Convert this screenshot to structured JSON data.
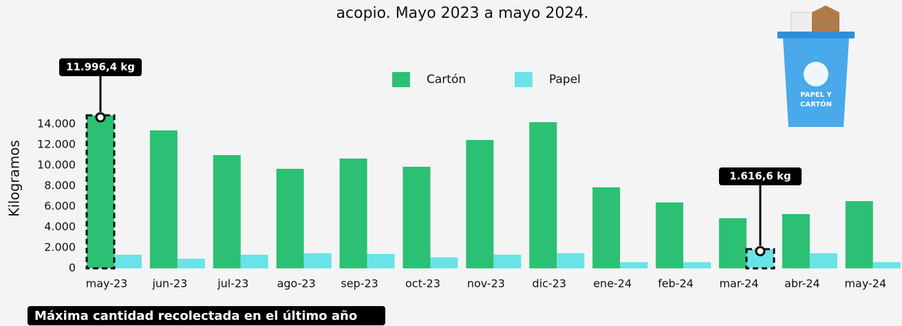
{
  "chart_data": {
    "type": "bar",
    "title": "acopio. Mayo 2023 a mayo 2024.",
    "y_label": "Kilogramos",
    "categories": [
      "may-23",
      "jun-23",
      "jul-23",
      "ago-23",
      "sep-23",
      "oct-23",
      "nov-23",
      "dic-23",
      "ene-24",
      "feb-24",
      "mar-24",
      "abr-24",
      "may-24"
    ],
    "series": [
      {
        "name": "Cartón",
        "color": "#2bc073",
        "values": [
          14870,
          13400,
          11000,
          9670,
          10670,
          9870,
          12470,
          14200,
          7870,
          6400,
          4870,
          5270,
          6530
        ]
      },
      {
        "name": "Papel",
        "color": "#6ae3e8",
        "values": [
          1330,
          930,
          1330,
          1470,
          1400,
          1070,
          1330,
          1470,
          600,
          600,
          1870,
          1470,
          600
        ]
      }
    ],
    "ylim": [
      0,
      14800
    ],
    "yticks": [
      0,
      {
        "value": 2000,
        "label": "2.000"
      },
      {
        "value": 4000,
        "label": "4.000"
      },
      {
        "value": 6000,
        "label": "6.000"
      },
      {
        "value": 8000,
        "label": "8.000"
      },
      {
        "value": 10000,
        "label": "10.000"
      },
      {
        "value": 12000,
        "label": "12.000"
      },
      {
        "value": 14000,
        "label": "14.000"
      }
    ],
    "legend": "top-center",
    "annotations": [
      "11.996,4 kg",
      "1.616,6 kg"
    ],
    "footer": "Máxima cantidad recolectada en el último año",
    "icon_text": [
      "PAPEL Y",
      "CARTÓN"
    ]
  }
}
